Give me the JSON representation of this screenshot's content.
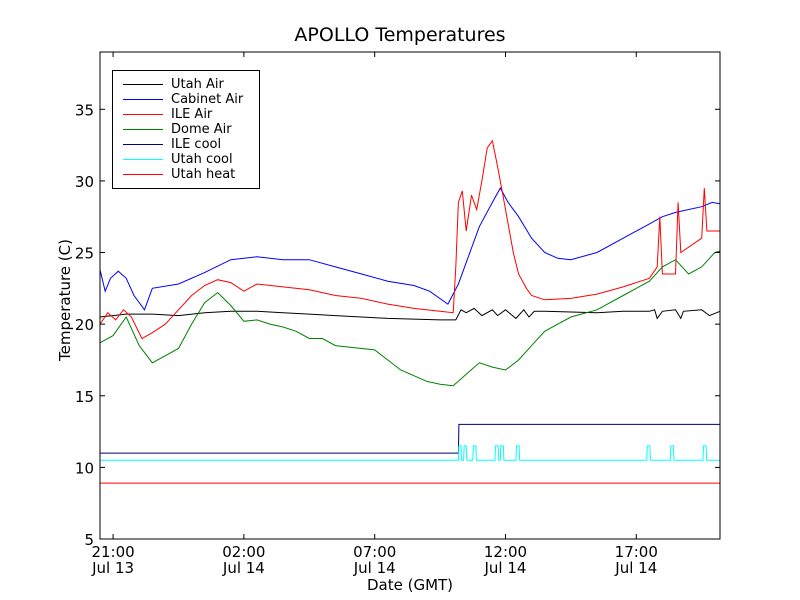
{
  "chart_data": {
    "type": "line",
    "title": "APOLLO Temperatures",
    "xlabel": "Date (GMT)",
    "ylabel": "Temperature (C)",
    "x_unit": "hours since Jul 13 20:30 GMT",
    "xlim": [
      0,
      23.7
    ],
    "ylim": [
      5,
      39
    ],
    "yticks": [
      5,
      10,
      15,
      20,
      25,
      30,
      35
    ],
    "xticks": [
      {
        "x": 0.5,
        "line1": "21:00",
        "line2": "Jul 13"
      },
      {
        "x": 5.5,
        "line1": "02:00",
        "line2": "Jul 14"
      },
      {
        "x": 10.5,
        "line1": "07:00",
        "line2": "Jul 14"
      },
      {
        "x": 15.5,
        "line1": "12:00",
        "line2": "Jul 14"
      },
      {
        "x": 20.5,
        "line1": "17:00",
        "line2": "Jul 14"
      }
    ],
    "legend_position": "top-left",
    "series": [
      {
        "name": "Utah Air",
        "color": "#000000",
        "points": [
          [
            0,
            20.5
          ],
          [
            1,
            20.7
          ],
          [
            2,
            20.7
          ],
          [
            3,
            20.6
          ],
          [
            4,
            20.8
          ],
          [
            5,
            20.9
          ],
          [
            6,
            20.9
          ],
          [
            7,
            20.8
          ],
          [
            8,
            20.7
          ],
          [
            9,
            20.6
          ],
          [
            10,
            20.5
          ],
          [
            11,
            20.4
          ],
          [
            12,
            20.35
          ],
          [
            13,
            20.3
          ],
          [
            13.6,
            20.3
          ],
          [
            13.8,
            21.0
          ],
          [
            14,
            20.8
          ],
          [
            14.3,
            21.1
          ],
          [
            14.6,
            20.6
          ],
          [
            15,
            21.0
          ],
          [
            15.2,
            20.6
          ],
          [
            15.5,
            21.0
          ],
          [
            15.9,
            20.4
          ],
          [
            16.2,
            21.0
          ],
          [
            16.4,
            20.5
          ],
          [
            16.6,
            20.9
          ],
          [
            17,
            20.9
          ],
          [
            18,
            20.85
          ],
          [
            19,
            20.8
          ],
          [
            20,
            20.9
          ],
          [
            21,
            20.9
          ],
          [
            21.2,
            21.0
          ],
          [
            21.3,
            20.4
          ],
          [
            21.5,
            20.9
          ],
          [
            22,
            21.0
          ],
          [
            22.2,
            20.4
          ],
          [
            22.3,
            20.9
          ],
          [
            23,
            21.0
          ],
          [
            23.3,
            20.6
          ],
          [
            23.7,
            20.9
          ]
        ]
      },
      {
        "name": "Cabinet Air",
        "color": "#0000ff",
        "points": [
          [
            0,
            23.8
          ],
          [
            0.2,
            22.3
          ],
          [
            0.4,
            23.2
          ],
          [
            0.7,
            23.7
          ],
          [
            1,
            23.2
          ],
          [
            1.3,
            22.0
          ],
          [
            1.7,
            21.0
          ],
          [
            2,
            22.5
          ],
          [
            3,
            22.8
          ],
          [
            4,
            23.6
          ],
          [
            5,
            24.5
          ],
          [
            6,
            24.7
          ],
          [
            7,
            24.5
          ],
          [
            8,
            24.5
          ],
          [
            9,
            24.0
          ],
          [
            10,
            23.5
          ],
          [
            11,
            23.0
          ],
          [
            12,
            22.7
          ],
          [
            12.6,
            22.3
          ],
          [
            13.3,
            21.4
          ],
          [
            13.7,
            22.8
          ],
          [
            14,
            24.3
          ],
          [
            14.5,
            26.8
          ],
          [
            15,
            28.5
          ],
          [
            15.3,
            29.5
          ],
          [
            15.6,
            28.5
          ],
          [
            16,
            27.5
          ],
          [
            16.5,
            26.0
          ],
          [
            17,
            25.0
          ],
          [
            17.5,
            24.6
          ],
          [
            18,
            24.5
          ],
          [
            19,
            25.0
          ],
          [
            20,
            26.0
          ],
          [
            21,
            27.0
          ],
          [
            21.5,
            27.5
          ],
          [
            22,
            27.8
          ],
          [
            23,
            28.2
          ],
          [
            23.4,
            28.5
          ],
          [
            23.7,
            28.4
          ]
        ]
      },
      {
        "name": "ILE Air",
        "color": "#ff0000",
        "points": [
          [
            0,
            20.0
          ],
          [
            0.3,
            20.8
          ],
          [
            0.6,
            20.3
          ],
          [
            0.9,
            21.0
          ],
          [
            1.2,
            20.5
          ],
          [
            1.6,
            19.0
          ],
          [
            2,
            19.4
          ],
          [
            2.5,
            20.0
          ],
          [
            3,
            21.0
          ],
          [
            3.5,
            22.0
          ],
          [
            4,
            22.7
          ],
          [
            4.5,
            23.1
          ],
          [
            5,
            22.9
          ],
          [
            5.5,
            22.3
          ],
          [
            6,
            22.8
          ],
          [
            7,
            22.6
          ],
          [
            8,
            22.4
          ],
          [
            9,
            22.0
          ],
          [
            10,
            21.8
          ],
          [
            11,
            21.4
          ],
          [
            12,
            21.1
          ],
          [
            13,
            20.9
          ],
          [
            13.5,
            20.8
          ],
          [
            13.6,
            24.0
          ],
          [
            13.7,
            28.5
          ],
          [
            13.85,
            29.3
          ],
          [
            14,
            26.5
          ],
          [
            14.2,
            29.0
          ],
          [
            14.4,
            28.0
          ],
          [
            14.6,
            30.0
          ],
          [
            14.8,
            32.3
          ],
          [
            15,
            32.8
          ],
          [
            15.2,
            31.0
          ],
          [
            15.4,
            29.0
          ],
          [
            15.6,
            27.0
          ],
          [
            15.8,
            25.0
          ],
          [
            16,
            23.5
          ],
          [
            16.3,
            22.5
          ],
          [
            16.5,
            22.0
          ],
          [
            17,
            21.7
          ],
          [
            18,
            21.8
          ],
          [
            19,
            22.1
          ],
          [
            20,
            22.6
          ],
          [
            21,
            23.2
          ],
          [
            21.3,
            24.0
          ],
          [
            21.4,
            27.5
          ],
          [
            21.5,
            23.5
          ],
          [
            22,
            23.5
          ],
          [
            22.1,
            28.5
          ],
          [
            22.2,
            25.0
          ],
          [
            23,
            26.0
          ],
          [
            23.1,
            29.5
          ],
          [
            23.2,
            26.5
          ],
          [
            23.7,
            26.5
          ]
        ]
      },
      {
        "name": "Dome Air",
        "color": "#008000",
        "points": [
          [
            0,
            18.7
          ],
          [
            0.5,
            19.2
          ],
          [
            1,
            20.5
          ],
          [
            1.5,
            18.5
          ],
          [
            2,
            17.3
          ],
          [
            2.5,
            17.8
          ],
          [
            3,
            18.3
          ],
          [
            3.5,
            20.0
          ],
          [
            4,
            21.5
          ],
          [
            4.5,
            22.2
          ],
          [
            5,
            21.3
          ],
          [
            5.5,
            20.2
          ],
          [
            6,
            20.3
          ],
          [
            6.5,
            20.0
          ],
          [
            7,
            19.8
          ],
          [
            7.5,
            19.5
          ],
          [
            8,
            19.0
          ],
          [
            8.5,
            19.0
          ],
          [
            9,
            18.5
          ],
          [
            10,
            18.3
          ],
          [
            10.5,
            18.2
          ],
          [
            11,
            17.5
          ],
          [
            11.5,
            16.8
          ],
          [
            12,
            16.4
          ],
          [
            12.5,
            16.0
          ],
          [
            13,
            15.8
          ],
          [
            13.5,
            15.7
          ],
          [
            14,
            16.5
          ],
          [
            14.5,
            17.3
          ],
          [
            15,
            17.0
          ],
          [
            15.5,
            16.8
          ],
          [
            16,
            17.5
          ],
          [
            16.5,
            18.5
          ],
          [
            17,
            19.5
          ],
          [
            17.5,
            20.0
          ],
          [
            18,
            20.5
          ],
          [
            19,
            21.0
          ],
          [
            20,
            22.0
          ],
          [
            21,
            23.0
          ],
          [
            21.5,
            24.0
          ],
          [
            22,
            24.5
          ],
          [
            22.5,
            23.5
          ],
          [
            23,
            24.0
          ],
          [
            23.5,
            25.0
          ],
          [
            23.7,
            25.1
          ]
        ]
      },
      {
        "name": "ILE cool",
        "color": "#000080",
        "points": [
          [
            0,
            11.0
          ],
          [
            13.7,
            11.0
          ],
          [
            13.72,
            13.0
          ],
          [
            23.7,
            13.0
          ]
        ]
      },
      {
        "name": "Utah cool",
        "color": "#00ffff",
        "points": [
          [
            0,
            10.5
          ],
          [
            13.7,
            10.5
          ],
          [
            13.72,
            11.5
          ],
          [
            13.8,
            11.5
          ],
          [
            13.82,
            10.5
          ],
          [
            13.9,
            10.5
          ],
          [
            13.92,
            11.5
          ],
          [
            14,
            11.5
          ],
          [
            14.02,
            10.5
          ],
          [
            14.25,
            10.5
          ],
          [
            14.27,
            11.5
          ],
          [
            14.37,
            11.5
          ],
          [
            14.39,
            10.5
          ],
          [
            15.1,
            10.5
          ],
          [
            15.12,
            11.5
          ],
          [
            15.22,
            11.5
          ],
          [
            15.24,
            10.5
          ],
          [
            15.3,
            10.5
          ],
          [
            15.32,
            11.5
          ],
          [
            15.42,
            11.5
          ],
          [
            15.44,
            10.5
          ],
          [
            15.9,
            10.5
          ],
          [
            15.92,
            11.5
          ],
          [
            16.02,
            11.5
          ],
          [
            16.04,
            10.5
          ],
          [
            20.9,
            10.5
          ],
          [
            20.92,
            11.5
          ],
          [
            21.02,
            11.5
          ],
          [
            21.04,
            10.5
          ],
          [
            21.8,
            10.5
          ],
          [
            21.82,
            11.5
          ],
          [
            21.92,
            11.5
          ],
          [
            21.94,
            10.5
          ],
          [
            23.05,
            10.5
          ],
          [
            23.07,
            11.5
          ],
          [
            23.17,
            11.5
          ],
          [
            23.19,
            10.5
          ],
          [
            23.7,
            10.5
          ]
        ]
      },
      {
        "name": "Utah heat",
        "color": "#ff0000",
        "points": [
          [
            0,
            8.9
          ],
          [
            23.7,
            8.9
          ]
        ]
      }
    ]
  }
}
